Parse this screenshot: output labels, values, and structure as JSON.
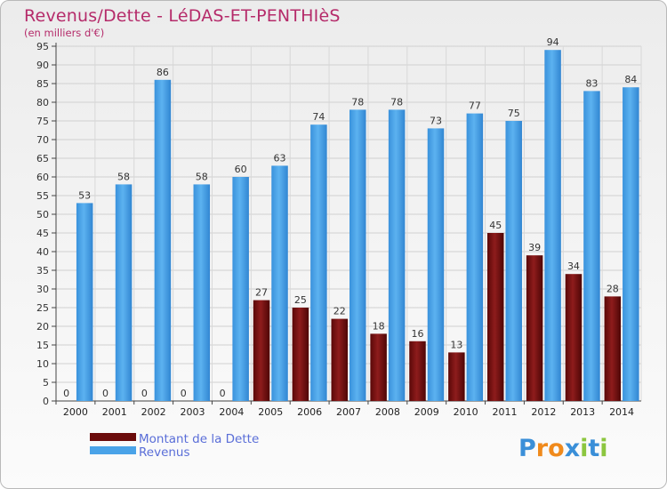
{
  "title": "Revenus/Dette - LéDAS-ET-PENTHIèS",
  "subtitle": "(en milliers d'€)",
  "chart_data": {
    "type": "bar",
    "title": "Revenus/Dette - LéDAS-ET-PENTHIèS",
    "subtitle": "(en milliers d'€)",
    "categories": [
      "2000",
      "2001",
      "2002",
      "2003",
      "2004",
      "2005",
      "2006",
      "2007",
      "2008",
      "2009",
      "2010",
      "2011",
      "2012",
      "2013",
      "2014"
    ],
    "series": [
      {
        "name": "Montant de la Dette",
        "color": "#7a0f0f",
        "values": [
          0,
          0,
          0,
          0,
          0,
          27,
          25,
          22,
          18,
          16,
          13,
          45,
          39,
          34,
          28
        ]
      },
      {
        "name": "Revenus",
        "color": "#4aa3e8",
        "values": [
          53,
          58,
          86,
          58,
          60,
          63,
          74,
          78,
          78,
          73,
          77,
          75,
          94,
          83,
          84
        ]
      }
    ],
    "ylim": [
      0,
      95
    ],
    "yticks": [
      0,
      5,
      10,
      15,
      20,
      25,
      30,
      35,
      40,
      45,
      50,
      55,
      60,
      65,
      70,
      75,
      80,
      85,
      90,
      95
    ],
    "grid": true,
    "legend": "bottom-left"
  },
  "legend": {
    "items": [
      {
        "label": "Montant de la Dette",
        "color": "#6b0b0b"
      },
      {
        "label": "Revenus",
        "color": "#4aa3e8"
      }
    ]
  },
  "logo": {
    "letters": [
      "P",
      "r",
      "o",
      "x",
      "i",
      "t",
      "i"
    ],
    "colors": [
      "#3a8fd8",
      "#f08a1c",
      "#f08a1c",
      "#3a8fd8",
      "#8cc63f",
      "#3a8fd8",
      "#8cc63f"
    ]
  }
}
